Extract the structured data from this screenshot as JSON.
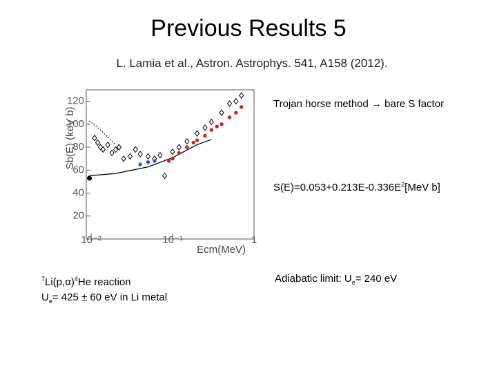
{
  "slide": {
    "title": "Previous Results 5",
    "subtitle": "L. Lamia et al., Astron. Astrophys. 541, A158 (2012).",
    "method": "Trojan horse method → bare S factor",
    "formula": {
      "main": "S(E)=0.053+0.213E-0.336E",
      "sup": "2",
      "unit": "[MeV b]"
    },
    "reaction": {
      "mass1": "7",
      "part1": "Li(p,α)",
      "mass2": "4",
      "part2": "He reaction",
      "u": "U",
      "sub": "e",
      "rest": "= 425 ± 60 eV in Li metal"
    },
    "adiabatic": {
      "text": "Adiabatic limit: U",
      "sub": "e",
      "rest": "= 240 eV"
    }
  },
  "chart_data": {
    "type": "scatter",
    "xlabel": "Ecm(MeV)",
    "ylabel": "Sb(E) (keV b)",
    "xscale": "log",
    "xlim": [
      0.0087,
      1
    ],
    "ylim": [
      0,
      130
    ],
    "xticks": [
      {
        "value": 0.01,
        "label": "10⁻²"
      },
      {
        "value": 0.1,
        "label": "10⁻¹"
      },
      1
    ],
    "yticks": [
      20,
      40,
      60,
      80,
      100,
      120
    ],
    "series": [
      {
        "marker": "dotted-line",
        "color": "#333333",
        "x": [
          0.0095,
          0.013,
          0.02
        ],
        "values": [
          103,
          95,
          82
        ]
      },
      {
        "marker": "line",
        "color": "#000000",
        "x": [
          0.0095,
          0.02,
          0.05,
          0.1,
          0.2,
          0.3
        ],
        "values": [
          55.1,
          57.1,
          62.8,
          70.9,
          82.2,
          86.7
        ]
      },
      {
        "marker": "open-diamond",
        "color": "#000000",
        "x": [
          0.011,
          0.012,
          0.013,
          0.014,
          0.016,
          0.018,
          0.02,
          0.022,
          0.025,
          0.03,
          0.035,
          0.04,
          0.05,
          0.06,
          0.07,
          0.08,
          0.1,
          0.12,
          0.15,
          0.2,
          0.25,
          0.3,
          0.4,
          0.5,
          0.6,
          0.7
        ],
        "values": [
          88,
          84,
          80,
          78,
          82,
          75,
          78,
          80,
          70,
          72,
          78,
          74,
          72,
          70,
          73,
          55,
          76,
          80,
          85,
          92,
          97,
          102,
          110,
          118,
          120,
          125
        ]
      },
      {
        "marker": "circle",
        "color": "#3050c0",
        "x": [
          0.04,
          0.05,
          0.06
        ],
        "values": [
          65,
          67,
          68
        ]
      },
      {
        "marker": "circle",
        "color": "#d02020",
        "x": [
          0.09,
          0.1,
          0.12,
          0.15,
          0.18,
          0.2,
          0.25,
          0.3,
          0.35,
          0.4,
          0.5,
          0.6,
          0.7
        ],
        "values": [
          68,
          70,
          75,
          80,
          84,
          86,
          90,
          95,
          98,
          100,
          106,
          110,
          115
        ]
      },
      {
        "marker": "filled-circle",
        "color": "#000000",
        "x": [
          0.0095
        ],
        "values": [
          53
        ]
      }
    ]
  }
}
